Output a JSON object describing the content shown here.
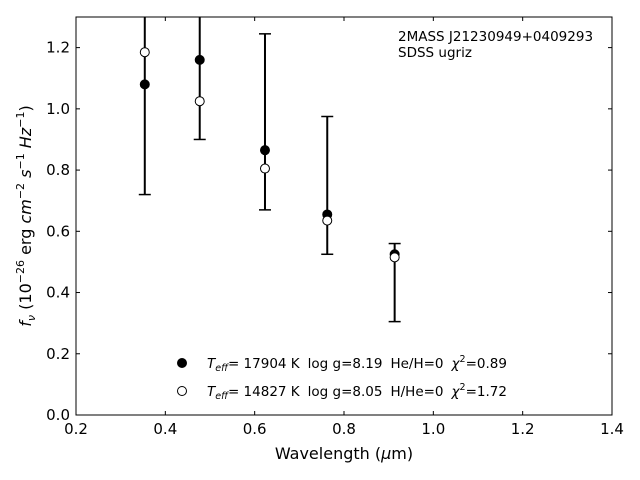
{
  "chart_data": {
    "type": "scatter",
    "title": "",
    "xlabel": "Wavelength (μm)",
    "ylabel": "f_ν (10^-26 erg cm^-2 s^-1 Hz^-1)",
    "xlim": [
      0.2,
      1.4
    ],
    "ylim": [
      0.0,
      1.3
    ],
    "xticks": [
      0.2,
      0.4,
      0.6,
      0.8,
      1.0,
      1.2,
      1.4
    ],
    "yticks": [
      0.0,
      0.2,
      0.4,
      0.6,
      0.8,
      1.0,
      1.2
    ],
    "xtick_labels": [
      "0.2",
      "0.4",
      "0.6",
      "0.8",
      "1.0",
      "1.2",
      "1.4"
    ],
    "ytick_labels": [
      "0.0",
      "0.2",
      "0.4",
      "0.6",
      "0.8",
      "1.0",
      "1.2"
    ],
    "grid": false,
    "legend_position": "bottom-center",
    "annotations": [
      "2MASS J21230949+0409293",
      "SDSS ugriz"
    ],
    "observed": {
      "x": [
        0.354,
        0.477,
        0.6231,
        0.7625,
        0.9134
      ],
      "y": [
        1.08,
        1.16,
        0.86,
        0.65,
        0.52
      ],
      "yerr_low": [
        0.72,
        0.9,
        0.67,
        0.525,
        0.305
      ],
      "yerr_high": [
        1.6,
        1.5,
        1.245,
        0.975,
        0.56
      ]
    },
    "series": [
      {
        "marker": "filled",
        "color": "#000000",
        "legend": {
          "teff_val": "= 17904 K",
          "logg": "log g=8.19",
          "comp": "He/H=0",
          "chi_val": "=0.89"
        },
        "x": [
          0.354,
          0.477,
          0.6231,
          0.7625,
          0.9134
        ],
        "y": [
          1.08,
          1.16,
          0.865,
          0.655,
          0.525
        ]
      },
      {
        "marker": "open",
        "color": "#000000",
        "legend": {
          "teff_val": "= 14827 K",
          "logg": "log g=8.05",
          "comp": "H/He=0",
          "chi_val": "=1.72"
        },
        "x": [
          0.354,
          0.477,
          0.6231,
          0.7625,
          0.9134
        ],
        "y": [
          1.185,
          1.025,
          0.805,
          0.635,
          0.515
        ]
      }
    ]
  }
}
